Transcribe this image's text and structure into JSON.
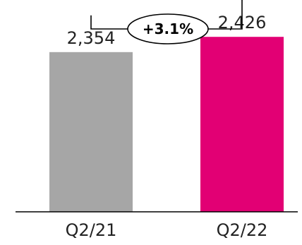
{
  "chart_data": {
    "type": "bar",
    "categories": [
      "Q2/21",
      "Q2/22"
    ],
    "values": [
      2354,
      2426
    ],
    "value_labels": [
      "2,354",
      "2,426"
    ],
    "bar_colors": [
      "#a6a6a6",
      "#e20074"
    ],
    "ylim": [
      0,
      2500
    ],
    "baseline": 1600,
    "title": "",
    "xlabel": "",
    "ylabel": "",
    "grid": false,
    "annotation": {
      "text": "+3.1%",
      "from_category": "Q2/21",
      "to_category": "Q2/22"
    }
  },
  "colors": {
    "text": "#222222",
    "axis": "#000000",
    "arrow": "#000000",
    "bubble_fill": "#ffffff",
    "bubble_stroke": "#000000"
  }
}
